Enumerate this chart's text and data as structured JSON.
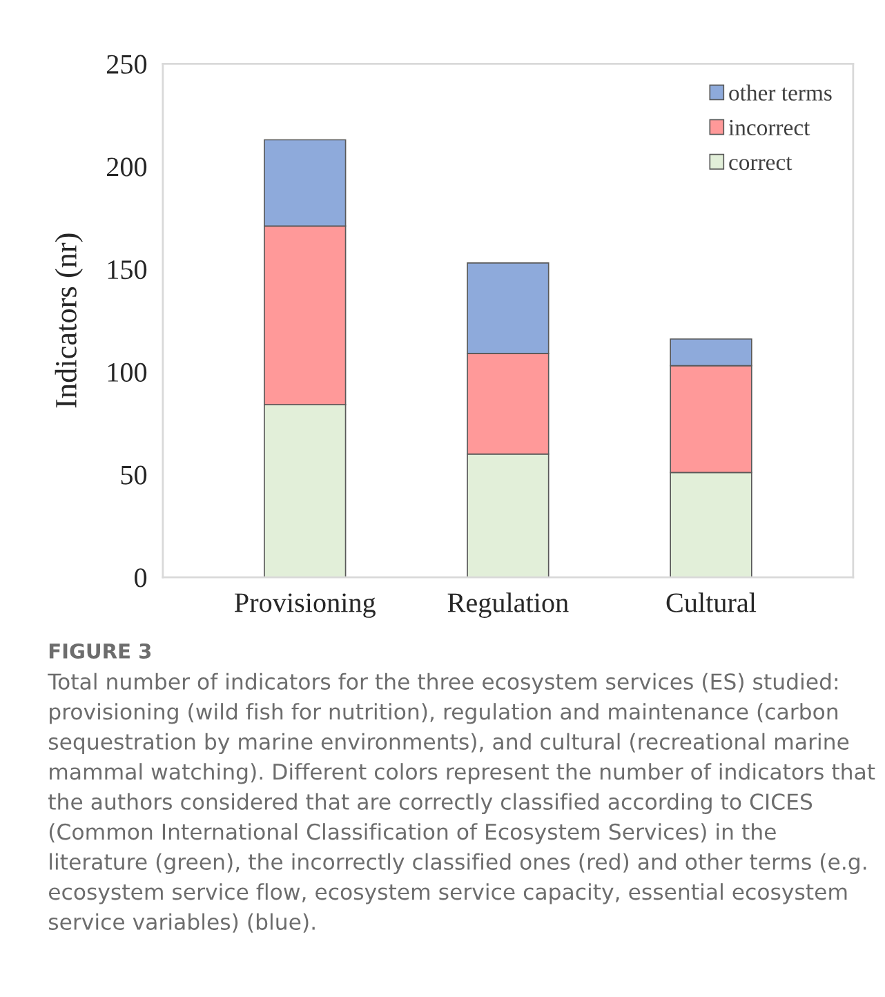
{
  "chart_data": {
    "type": "bar",
    "stacked": true,
    "ylabel": "Indicators (nr)",
    "categories": [
      "Provisioning",
      "Regulation",
      "Cultural"
    ],
    "series": [
      {
        "name": "correct",
        "color": "#e2efd9",
        "values": [
          84,
          60,
          51
        ]
      },
      {
        "name": "incorrect",
        "color": "#ff9999",
        "values": [
          87,
          49,
          52
        ]
      },
      {
        "name": "other terms",
        "color": "#8eaadb",
        "values": [
          42,
          44,
          13
        ]
      }
    ],
    "ylim": [
      0,
      250
    ],
    "yticks": [
      0,
      50,
      100,
      150,
      200,
      250
    ],
    "grid": false,
    "legend": "top right",
    "annotations": [
      "FIGURE 3",
      "Total number of indicators for the three ecosystem services (ES) studied: provisioning (wild fish for nutrition), regulation and maintenance (carbon sequestration by marine environments), and cultural (recreational marine mammal watching). Different colors represent the number of indicators that the authors considered that are correctly classified according to CICES (Common International Classification of Ecosystem Services) in the literature (green), the incorrectly classified ones (red) and other terms (e.g. ecosystem service flow, ecosystem service capacity, essential ecosystem service variables) (blue)."
    ]
  }
}
